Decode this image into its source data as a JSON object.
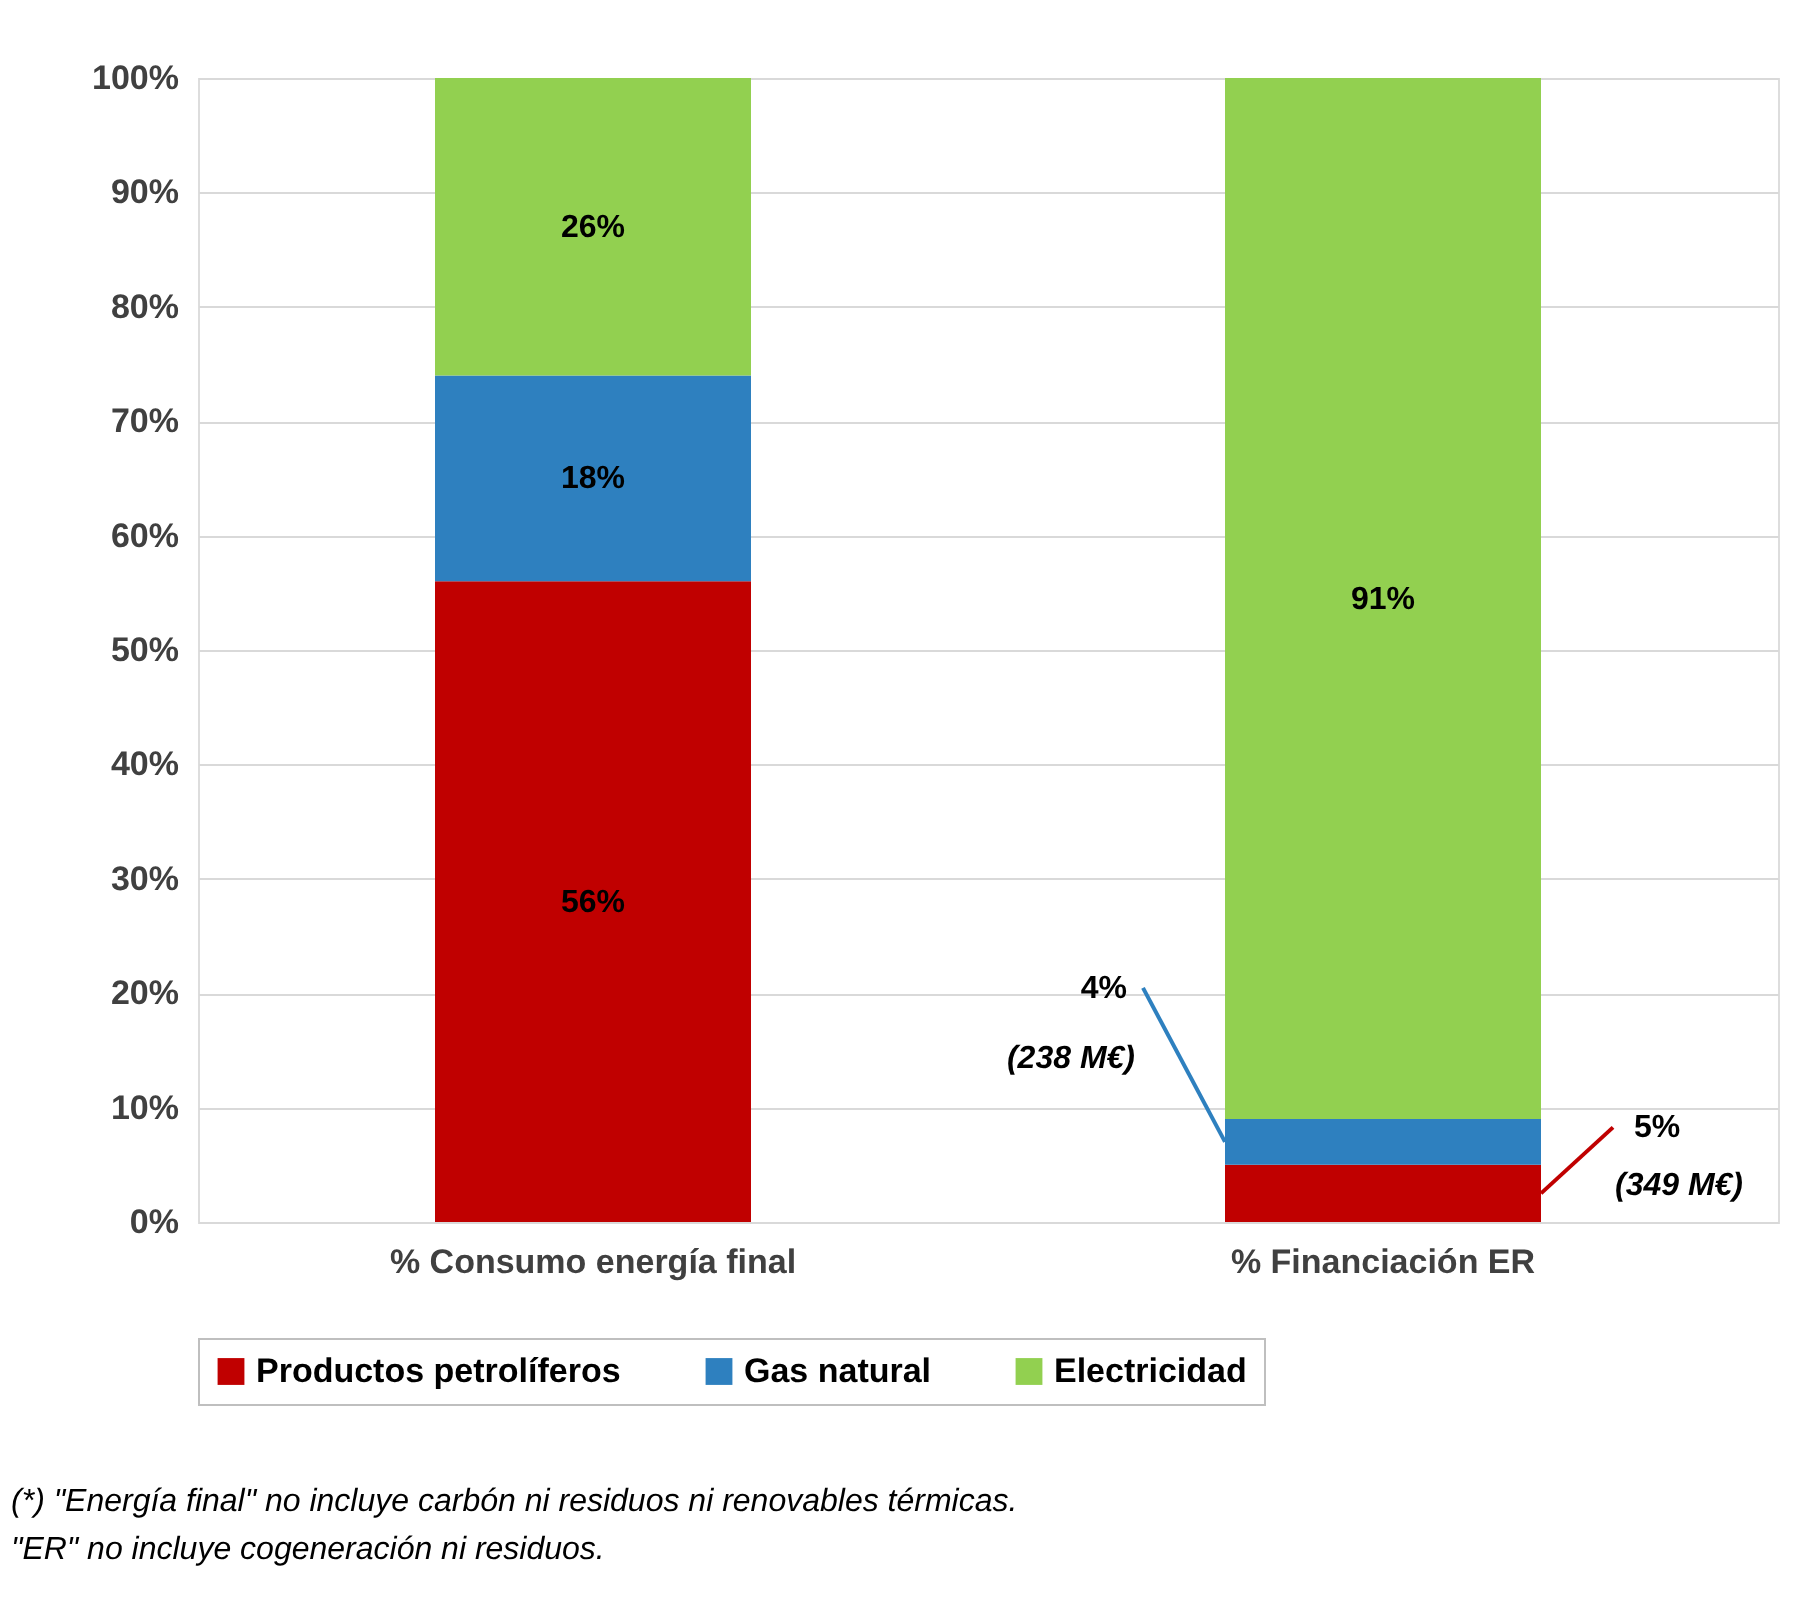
{
  "chart_data": {
    "type": "bar",
    "stacked": true,
    "categories": [
      "% Consumo energía final",
      "% Financiación ER"
    ],
    "series": [
      {
        "name": "Productos petrolíferos",
        "color": "#c00000",
        "values": [
          56,
          5
        ],
        "value_labels": [
          "56%",
          "5%"
        ]
      },
      {
        "name": "Gas natural",
        "color": "#2e80bf",
        "values": [
          18,
          4
        ],
        "value_labels": [
          "18%",
          "4%"
        ]
      },
      {
        "name": "Electricidad",
        "color": "#92d050",
        "values": [
          26,
          91
        ],
        "value_labels": [
          "26%",
          "91%"
        ]
      }
    ],
    "ylim": [
      0,
      100
    ],
    "yticks": [
      {
        "value": 0,
        "label": "0%"
      },
      {
        "value": 10,
        "label": "10%"
      },
      {
        "value": 20,
        "label": "20%"
      },
      {
        "value": 30,
        "label": "30%"
      },
      {
        "value": 40,
        "label": "40%"
      },
      {
        "value": 50,
        "label": "50%"
      },
      {
        "value": 60,
        "label": "60%"
      },
      {
        "value": 70,
        "label": "70%"
      },
      {
        "value": 80,
        "label": "80%"
      },
      {
        "value": 90,
        "label": "90%"
      },
      {
        "value": 100,
        "label": "100%"
      }
    ],
    "grid": "y",
    "legend": "bottom",
    "annotations": [
      "(238 M€)",
      "(349 M€)",
      "(*) \"Energía final\" no incluye carbón ni residuos ni renovables térmicas.",
      "\"ER\" no incluye cogeneración ni residuos."
    ]
  }
}
